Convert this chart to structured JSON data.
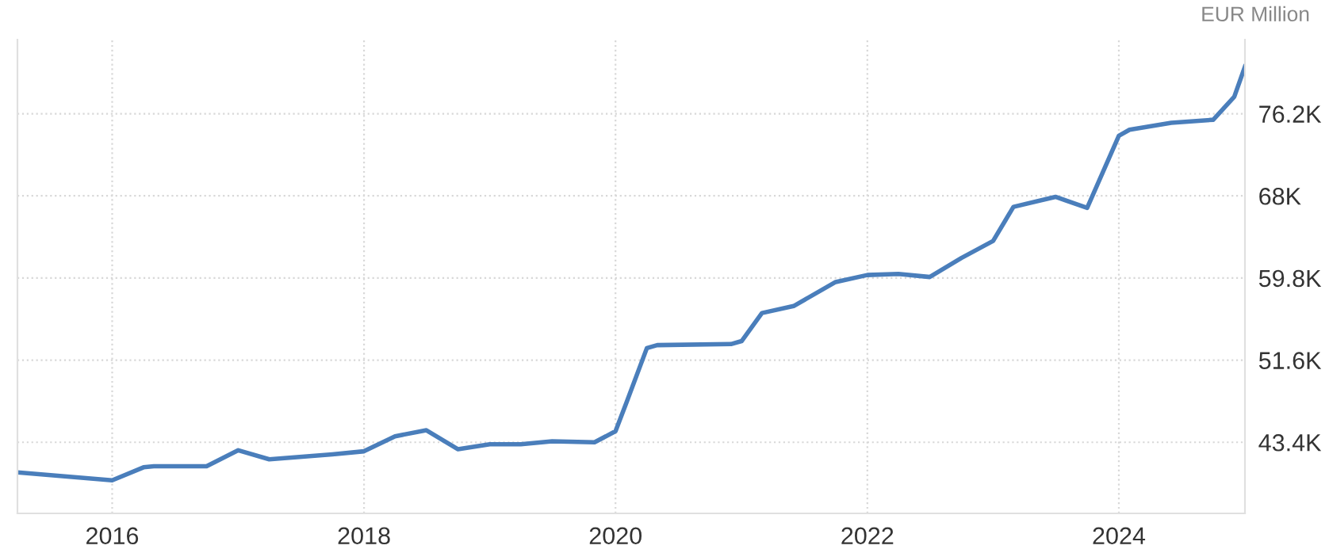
{
  "chart_data": {
    "type": "line",
    "ylabel": "EUR Million",
    "x": [
      "2015-04",
      "2016-01",
      "2016-04",
      "2016-05",
      "2016-10",
      "2017-01",
      "2017-04",
      "2017-10",
      "2018-01",
      "2018-04",
      "2018-07",
      "2018-10",
      "2019-01",
      "2019-04",
      "2019-07",
      "2019-11",
      "2020-01",
      "2020-02",
      "2020-04",
      "2020-05",
      "2020-12",
      "2021-01",
      "2021-03",
      "2021-06",
      "2021-10",
      "2022-01",
      "2022-04",
      "2022-07",
      "2022-10",
      "2023-01",
      "2023-03",
      "2023-07",
      "2023-10",
      "2024-01",
      "2024-02",
      "2024-06",
      "2024-10",
      "2024-12",
      "2025-01"
    ],
    "series": [
      {
        "color": "#4a7ebb",
        "values": [
          40400,
          39600,
          40900,
          41000,
          41000,
          42600,
          41700,
          42200,
          42500,
          44000,
          44600,
          42700,
          43200,
          43200,
          43500,
          43400,
          44500,
          47300,
          52800,
          53100,
          53200,
          53500,
          56300,
          57000,
          59400,
          60100,
          60200,
          59900,
          61800,
          63500,
          66900,
          67900,
          66800,
          74000,
          74600,
          75300,
          75600,
          77900,
          80900
        ]
      }
    ],
    "xlim": [
      "2015-04",
      "2025-01"
    ],
    "xticks": [
      {
        "value": "2016-01",
        "label": "2016"
      },
      {
        "value": "2018-01",
        "label": "2018"
      },
      {
        "value": "2020-01",
        "label": "2020"
      },
      {
        "value": "2022-01",
        "label": "2022"
      },
      {
        "value": "2024-01",
        "label": "2024"
      }
    ],
    "ylim": [
      36300,
      83600
    ],
    "yticks": [
      {
        "value": 43400,
        "label": "43.4K"
      },
      {
        "value": 51600,
        "label": "51.6K"
      },
      {
        "value": 59800,
        "label": "59.8K"
      },
      {
        "value": 68000,
        "label": "68K"
      },
      {
        "value": 76200,
        "label": "76.2K"
      }
    ],
    "grid": true,
    "line_style": "solid",
    "marker": "none"
  }
}
